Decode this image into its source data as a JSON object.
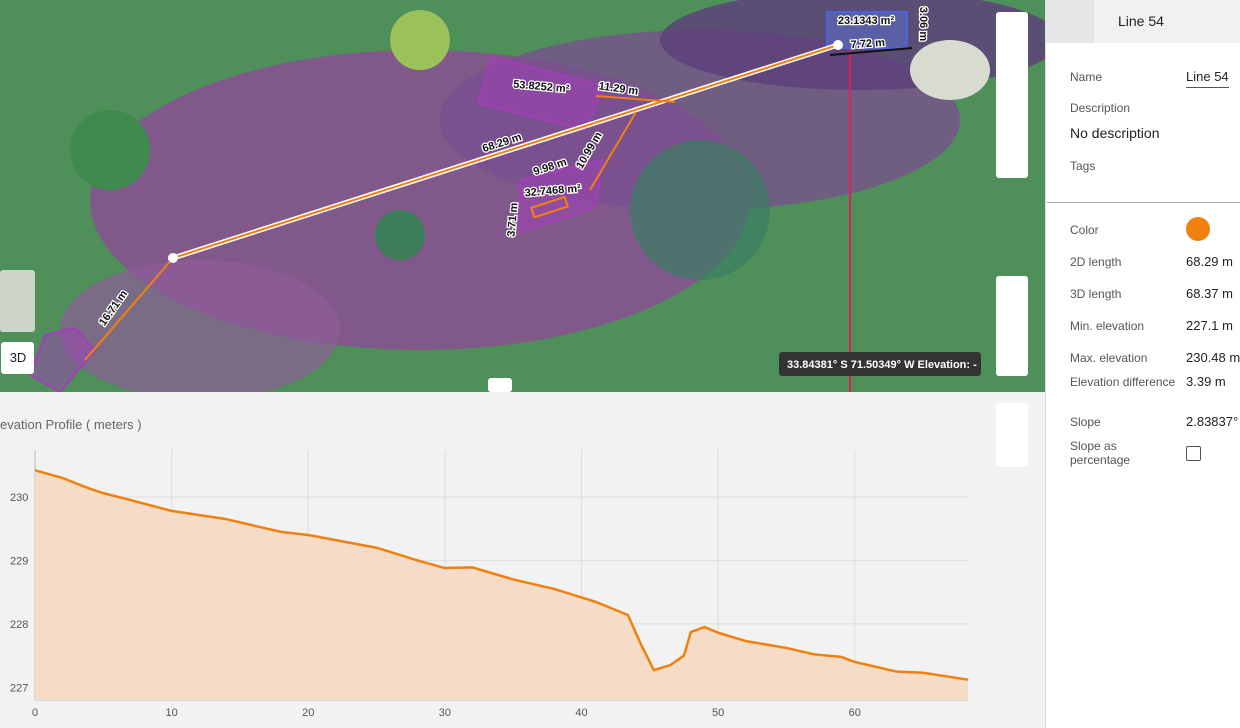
{
  "map": {
    "labels": [
      "23.1343 m²",
      "3.06 m",
      "7.72 m",
      "53.8252 m²",
      "11.29 m",
      "68.29 m",
      "9.98 m",
      "10.99 m",
      "32.7468 m²",
      "3.71 m",
      "16.71 m"
    ],
    "mode_button": "3D",
    "coordinates": "33.84381° S 71.50349° W   Elevation: -"
  },
  "panel": {
    "header": "Line 54",
    "fields": [
      {
        "label": "Name",
        "value": "Line 54"
      },
      {
        "label": "Description",
        "value": "No description"
      },
      {
        "label": "Tags"
      },
      {
        "label": "Color"
      },
      {
        "label": "2D length",
        "value": "68.29 m"
      },
      {
        "label": "3D length",
        "value": "68.37 m"
      },
      {
        "label": "Min. elevation",
        "value": "227.1 m"
      },
      {
        "label": "Max. elevation",
        "value": "230.48 m"
      },
      {
        "label": "Elevation difference",
        "value": "3.39 m"
      },
      {
        "label": "Slope",
        "value": "2.83837°"
      },
      {
        "label": "Slope as percentage"
      }
    ]
  },
  "chart_data": {
    "type": "line",
    "title": "evation Profile ( meters )",
    "color": "#f08010",
    "fill": "#f5dcc6",
    "grid": true,
    "x": [
      0,
      2,
      4,
      5,
      7,
      10,
      14,
      18,
      20,
      25,
      28,
      30,
      32,
      35,
      38,
      41,
      43.4,
      44.3,
      45.3,
      46.5,
      47.5,
      48,
      49,
      50,
      52,
      55,
      57,
      59,
      60,
      62,
      63,
      65,
      68.29
    ],
    "values": [
      230.42,
      230.3,
      230.13,
      230.06,
      229.95,
      229.78,
      229.65,
      229.45,
      229.4,
      229.2,
      229.0,
      228.88,
      228.89,
      228.7,
      228.55,
      228.35,
      228.14,
      227.7,
      227.27,
      227.35,
      227.5,
      227.87,
      227.95,
      227.86,
      227.73,
      227.62,
      227.52,
      227.48,
      227.4,
      227.3,
      227.25,
      227.23,
      227.12
    ],
    "xlim": [
      0,
      68.29
    ],
    "ylim": [
      226.8,
      230.74
    ],
    "xticks": [
      0,
      10,
      20,
      30,
      40,
      50,
      60
    ],
    "yticks": [
      227,
      228,
      229,
      230
    ]
  }
}
